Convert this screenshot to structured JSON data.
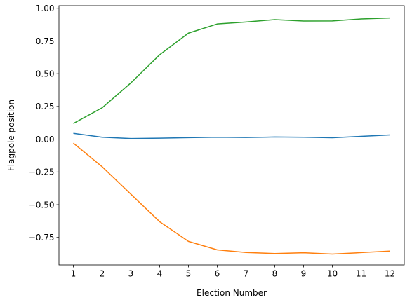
{
  "chart_data": {
    "type": "line",
    "title": "",
    "xlabel": "Election Number",
    "ylabel": "Flagpole position",
    "x": [
      1,
      2,
      3,
      4,
      5,
      6,
      7,
      8,
      9,
      10,
      11,
      12
    ],
    "xlim": [
      0.5,
      12.5
    ],
    "ylim": [
      -0.96,
      1.02
    ],
    "xticks": [
      1,
      2,
      3,
      4,
      5,
      6,
      7,
      8,
      9,
      10,
      11,
      12
    ],
    "yticks": [
      -0.75,
      -0.5,
      -0.25,
      0.0,
      0.25,
      0.5,
      0.75,
      1.0
    ],
    "ytick_labels": [
      "−0.75",
      "−0.50",
      "−0.25",
      "0.00",
      "0.25",
      "0.50",
      "0.75",
      "1.00"
    ],
    "grid": false,
    "legend": "none",
    "series": [
      {
        "color": "#1f77b4",
        "values": [
          0.045,
          0.015,
          0.005,
          0.008,
          0.012,
          0.015,
          0.013,
          0.017,
          0.015,
          0.011,
          0.022,
          0.033
        ]
      },
      {
        "color": "#ff7f0e",
        "values": [
          -0.03,
          -0.21,
          -0.42,
          -0.63,
          -0.78,
          -0.845,
          -0.865,
          -0.873,
          -0.867,
          -0.877,
          -0.866,
          -0.854
        ]
      },
      {
        "color": "#2ca02c",
        "values": [
          0.12,
          0.24,
          0.43,
          0.645,
          0.81,
          0.88,
          0.895,
          0.913,
          0.902,
          0.903,
          0.918,
          0.926
        ]
      }
    ]
  }
}
